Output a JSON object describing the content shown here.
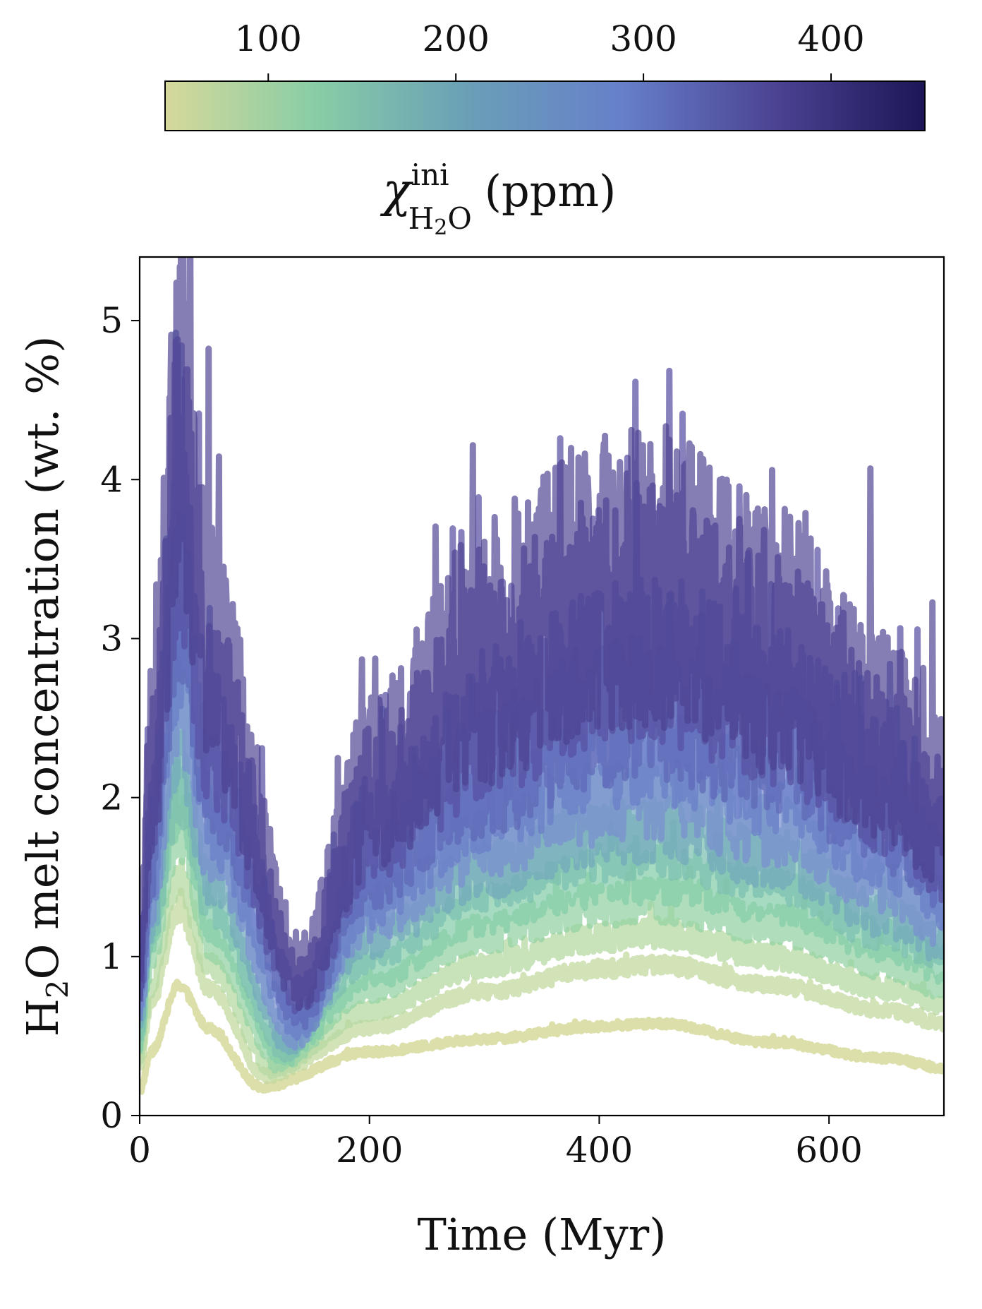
{
  "chart_data": {
    "type": "line",
    "xlabel": "Time (Myr)",
    "ylabel": "H₂O melt concentration (wt. %)",
    "ylabel_parts": {
      "h": "H",
      "sub": "2",
      "rest": "O melt concentration (wt. %)"
    },
    "xlim": [
      0,
      700
    ],
    "ylim": [
      0,
      5.4
    ],
    "xticks": [
      "0",
      "200",
      "400",
      "600"
    ],
    "yticks": [
      "0",
      "1",
      "2",
      "3",
      "4",
      "5"
    ],
    "grid": false,
    "colorbar": {
      "label": "χ ini H₂O (ppm)",
      "label_parts": {
        "chi": "χ",
        "sup": "ini",
        "sub_h": "H",
        "sub_2": "2",
        "sub_o": "O",
        "unit": "(ppm)"
      },
      "range": [
        45,
        450
      ],
      "ticks": [
        "100",
        "200",
        "300",
        "400"
      ],
      "colors": [
        "#d6d99a",
        "#87cda6",
        "#6a9fb7",
        "#6680c9",
        "#4c4494",
        "#1d1656"
      ]
    },
    "series": [
      {
        "chi_ppm": 50,
        "color": "#d6d99a",
        "opacity": 0.85,
        "points": [
          [
            0,
            0.15
          ],
          [
            10,
            0.4
          ],
          [
            34,
            0.82
          ],
          [
            60,
            0.55
          ],
          [
            105,
            0.18
          ],
          [
            200,
            0.4
          ],
          [
            300,
            0.48
          ],
          [
            400,
            0.56
          ],
          [
            450,
            0.58
          ],
          [
            550,
            0.46
          ],
          [
            650,
            0.36
          ],
          [
            700,
            0.3
          ]
        ]
      },
      {
        "chi_ppm": 90,
        "color": "#c3daa0",
        "opacity": 0.75,
        "points": [
          [
            0,
            0.3
          ],
          [
            10,
            0.7
          ],
          [
            34,
            1.3
          ],
          [
            60,
            0.8
          ],
          [
            110,
            0.25
          ],
          [
            200,
            0.55
          ],
          [
            300,
            0.78
          ],
          [
            400,
            0.92
          ],
          [
            450,
            0.95
          ],
          [
            550,
            0.82
          ],
          [
            650,
            0.66
          ],
          [
            700,
            0.58
          ]
        ]
      },
      {
        "chi_ppm": 120,
        "color": "#b5d8a2",
        "opacity": 0.75,
        "points": [
          [
            0,
            0.35
          ],
          [
            10,
            0.8
          ],
          [
            34,
            1.5
          ],
          [
            60,
            0.95
          ],
          [
            115,
            0.3
          ],
          [
            200,
            0.66
          ],
          [
            300,
            0.95
          ],
          [
            400,
            1.12
          ],
          [
            450,
            1.15
          ],
          [
            550,
            1.0
          ],
          [
            650,
            0.8
          ],
          [
            700,
            0.7
          ]
        ]
      },
      {
        "chi_ppm": 150,
        "color": "#96d3a6",
        "opacity": 0.75,
        "points": [
          [
            0,
            0.45
          ],
          [
            10,
            1.0
          ],
          [
            34,
            1.8
          ],
          [
            60,
            1.1
          ],
          [
            120,
            0.35
          ],
          [
            200,
            0.8
          ],
          [
            300,
            1.15
          ],
          [
            400,
            1.32
          ],
          [
            450,
            1.35
          ],
          [
            550,
            1.2
          ],
          [
            650,
            0.96
          ],
          [
            700,
            0.82
          ]
        ]
      },
      {
        "chi_ppm": 180,
        "color": "#84cda9",
        "opacity": 0.72,
        "points": [
          [
            0,
            0.5
          ],
          [
            10,
            1.1
          ],
          [
            34,
            2.0
          ],
          [
            60,
            1.25
          ],
          [
            125,
            0.4
          ],
          [
            200,
            0.9
          ],
          [
            300,
            1.3
          ],
          [
            400,
            1.5
          ],
          [
            450,
            1.52
          ],
          [
            550,
            1.38
          ],
          [
            650,
            1.1
          ],
          [
            700,
            0.95
          ]
        ]
      },
      {
        "chi_ppm": 210,
        "color": "#7cbfb0",
        "opacity": 0.72,
        "points": [
          [
            0,
            0.55
          ],
          [
            10,
            1.2
          ],
          [
            34,
            2.15
          ],
          [
            60,
            1.4
          ],
          [
            125,
            0.45
          ],
          [
            200,
            1.05
          ],
          [
            300,
            1.5
          ],
          [
            400,
            1.72
          ],
          [
            450,
            1.75
          ],
          [
            550,
            1.58
          ],
          [
            650,
            1.22
          ],
          [
            700,
            1.05
          ]
        ]
      },
      {
        "chi_ppm": 240,
        "color": "#73a9bc",
        "opacity": 0.72,
        "points": [
          [
            0,
            0.6
          ],
          [
            10,
            1.3
          ],
          [
            34,
            2.5
          ],
          [
            60,
            1.6
          ],
          [
            130,
            0.5
          ],
          [
            200,
            1.2
          ],
          [
            300,
            1.65
          ],
          [
            400,
            1.9
          ],
          [
            450,
            1.92
          ],
          [
            550,
            1.72
          ],
          [
            650,
            1.35
          ],
          [
            700,
            1.15
          ]
        ]
      },
      {
        "chi_ppm": 270,
        "color": "#7a8fd0",
        "opacity": 0.72,
        "points": [
          [
            0,
            0.65
          ],
          [
            10,
            1.45
          ],
          [
            34,
            2.8
          ],
          [
            60,
            1.8
          ],
          [
            135,
            0.55
          ],
          [
            200,
            1.35
          ],
          [
            300,
            1.85
          ],
          [
            400,
            2.1
          ],
          [
            450,
            2.15
          ],
          [
            550,
            1.95
          ],
          [
            650,
            1.55
          ],
          [
            700,
            1.3
          ]
        ]
      },
      {
        "chi_ppm": 300,
        "color": "#6a7ec8",
        "opacity": 0.72,
        "points": [
          [
            0,
            0.7
          ],
          [
            10,
            1.6
          ],
          [
            34,
            3.2
          ],
          [
            60,
            2.0
          ],
          [
            140,
            0.6
          ],
          [
            200,
            1.5
          ],
          [
            300,
            2.1
          ],
          [
            400,
            2.45
          ],
          [
            450,
            2.5
          ],
          [
            550,
            2.25
          ],
          [
            650,
            1.8
          ],
          [
            700,
            1.5
          ]
        ]
      },
      {
        "chi_ppm": 330,
        "color": "#5e68b7",
        "opacity": 0.72,
        "points": [
          [
            0,
            0.8
          ],
          [
            10,
            1.8
          ],
          [
            34,
            3.5
          ],
          [
            60,
            2.3
          ],
          [
            140,
            0.7
          ],
          [
            200,
            1.7
          ],
          [
            300,
            2.3
          ],
          [
            400,
            2.7
          ],
          [
            450,
            2.75
          ],
          [
            550,
            2.5
          ],
          [
            650,
            2.0
          ],
          [
            700,
            1.7
          ]
        ]
      },
      {
        "chi_ppm": 380,
        "color": "#5850a2",
        "opacity": 0.72,
        "points": [
          [
            0,
            0.9
          ],
          [
            10,
            2.0
          ],
          [
            35,
            4.0
          ],
          [
            60,
            2.6
          ],
          [
            140,
            0.8
          ],
          [
            200,
            1.95
          ],
          [
            300,
            2.65
          ],
          [
            400,
            3.1
          ],
          [
            450,
            3.15
          ],
          [
            550,
            2.8
          ],
          [
            650,
            2.2
          ],
          [
            700,
            1.8
          ]
        ]
      },
      {
        "chi_ppm": 430,
        "color": "#4b4190",
        "opacity": 0.68,
        "points": [
          [
            0,
            1.0
          ],
          [
            10,
            2.2
          ],
          [
            35,
            4.5
          ],
          [
            60,
            2.9
          ],
          [
            140,
            0.9
          ],
          [
            200,
            2.1
          ],
          [
            300,
            2.9
          ],
          [
            400,
            3.35
          ],
          [
            450,
            3.4
          ],
          [
            550,
            3.0
          ],
          [
            650,
            2.4
          ],
          [
            700,
            1.95
          ]
        ]
      }
    ]
  }
}
